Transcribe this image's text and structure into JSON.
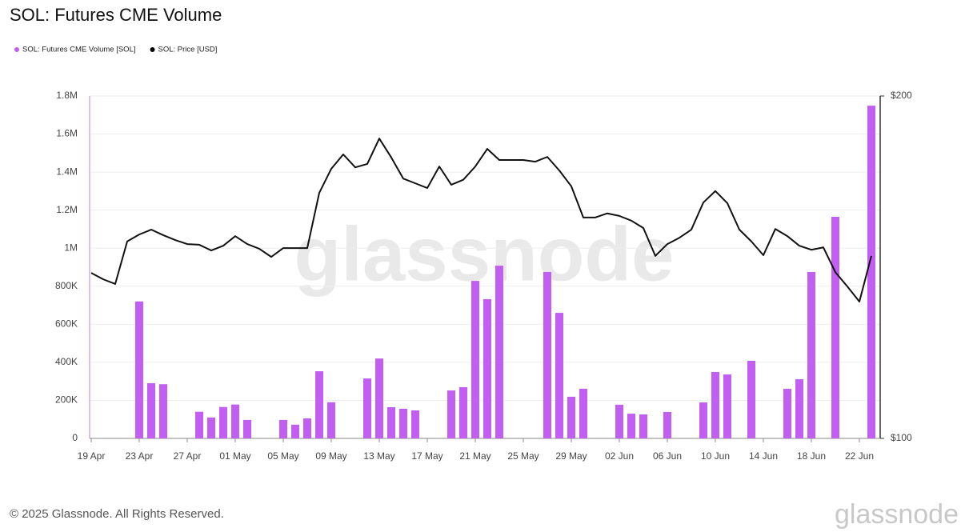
{
  "chart_data": {
    "type": "bar-line",
    "title": "SOL: Futures CME Volume",
    "categories": [
      "19 Apr",
      null,
      null,
      null,
      "23 Apr",
      null,
      null,
      null,
      "27 Apr",
      null,
      null,
      null,
      "01 May",
      null,
      null,
      null,
      "05 May",
      null,
      null,
      null,
      "09 May",
      null,
      null,
      null,
      "13 May",
      null,
      null,
      null,
      "17 May",
      null,
      null,
      null,
      "21 May",
      null,
      null,
      null,
      "25 May",
      null,
      null,
      null,
      "29 May",
      null,
      null,
      null,
      "02 Jun",
      null,
      null,
      null,
      "06 Jun",
      null,
      null,
      null,
      "10 Jun",
      null,
      null,
      null,
      "14 Jun",
      null,
      null,
      null,
      "18 Jun",
      null,
      null,
      null,
      "22 Jun",
      null
    ],
    "series": [
      {
        "name": "SOL: Futures CME Volume [SOL]",
        "type": "bar",
        "color": "#c25ef2",
        "axis": "y",
        "values": [
          null,
          null,
          null,
          null,
          720000,
          290000,
          285000,
          null,
          null,
          140000,
          110000,
          165000,
          178000,
          97000,
          null,
          null,
          97000,
          72000,
          105000,
          353000,
          190000,
          null,
          null,
          315000,
          420000,
          164000,
          156000,
          147000,
          null,
          null,
          252000,
          269000,
          828000,
          732000,
          908000,
          null,
          null,
          null,
          875000,
          660000,
          219000,
          261000,
          null,
          null,
          177000,
          130000,
          126000,
          null,
          139000,
          null,
          null,
          189000,
          349000,
          336000,
          null,
          408000,
          null,
          null,
          261000,
          311000,
          875000,
          null,
          1165000,
          null,
          null,
          1749000
        ]
      },
      {
        "name": "SOL: Price [USD]",
        "type": "line",
        "color": "#111111",
        "axis": "y2",
        "values": [
          139.8,
          138.0,
          136.7,
          149.0,
          151.1,
          152.6,
          150.9,
          149.4,
          148.2,
          148.0,
          146.3,
          147.7,
          150.6,
          148.2,
          146.8,
          144.4,
          147.0,
          147.0,
          147.0,
          164.4,
          172.6,
          177.7,
          173.1,
          174.3,
          183.5,
          176.6,
          169.2,
          167.6,
          166.0,
          173.4,
          167.1,
          168.8,
          173.4,
          179.7,
          175.7,
          175.7,
          175.7,
          175.1,
          176.8,
          172.0,
          166.6,
          156.4,
          156.4,
          157.7,
          156.9,
          155.4,
          153.1,
          144.7,
          148.2,
          150.1,
          152.6,
          161.2,
          165.0,
          161.0,
          152.6,
          149.0,
          144.9,
          152.8,
          150.6,
          147.7,
          146.5,
          147.2,
          140.0,
          136.0,
          131.9,
          144.7
        ]
      }
    ],
    "ylim": [
      0,
      1800000
    ],
    "yticks": [
      0,
      {
        "value": 200000,
        "label": "200K"
      },
      {
        "value": 400000,
        "label": "400K"
      },
      {
        "value": 600000,
        "label": "600K"
      },
      {
        "value": 800000,
        "label": "800K"
      },
      {
        "value": 1000000,
        "label": "1M"
      },
      {
        "value": 1200000,
        "label": "1.2M"
      },
      {
        "value": 1400000,
        "label": "1.4M"
      },
      {
        "value": 1600000,
        "label": "1.6M"
      },
      {
        "value": 1800000,
        "label": "1.8M"
      }
    ],
    "y2lim": [
      100,
      200
    ],
    "y2ticks": [
      {
        "value": 100,
        "label": "$100"
      },
      {
        "value": 200,
        "label": "$200"
      }
    ],
    "y2log": true,
    "grid": true,
    "legend": "top-left"
  },
  "watermark": "glassnode",
  "footer": {
    "copyright": "© 2025 Glassnode. All Rights Reserved.",
    "logo": "glassnode"
  }
}
